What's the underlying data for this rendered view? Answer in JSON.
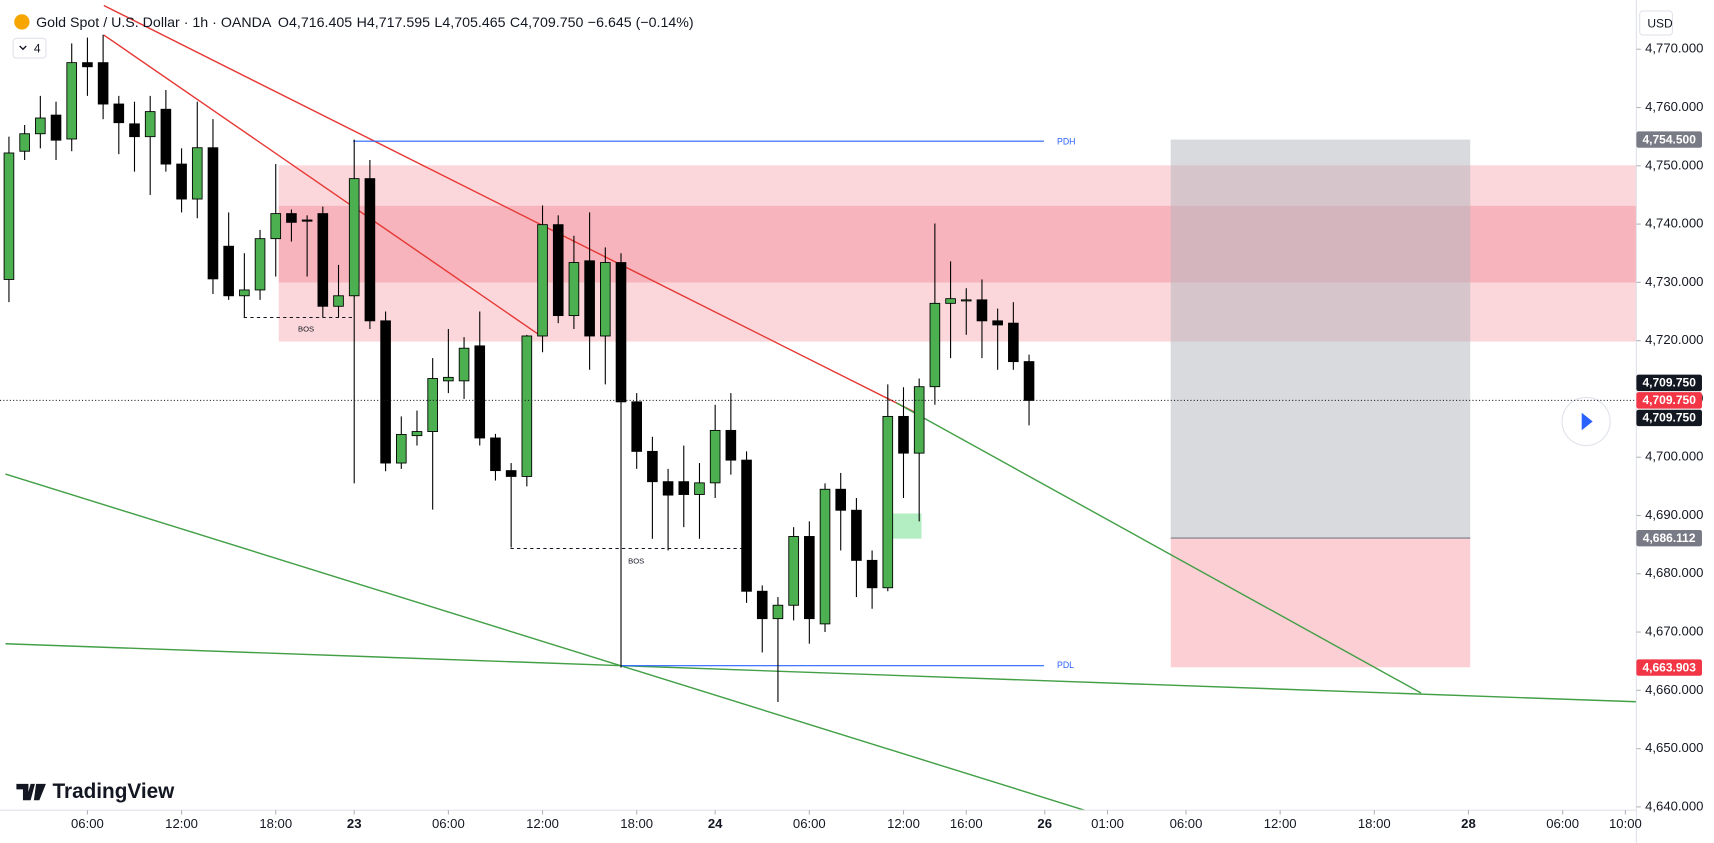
{
  "chart_data": {
    "type": "candlestick",
    "title": "Gold Spot / U.S. Dollar · 1h · OANDA",
    "ohlc_legend": [
      {
        "key": "O",
        "value": "4,716.405"
      },
      {
        "key": "H",
        "value": "4,717.595"
      },
      {
        "key": "L",
        "value": "4,705.465"
      },
      {
        "key": "C",
        "value": "4,709.750"
      }
    ],
    "change": "−6.645 (−0.14%)",
    "indicator_count": "4",
    "currency": "USD",
    "brand": "TradingView",
    "annotations": {
      "pdh": "PDH",
      "pdl": "PDL",
      "bos": [
        "BOS",
        "BOS"
      ]
    },
    "x": [
      0,
      1,
      2,
      3,
      4,
      5,
      6,
      7,
      8,
      9,
      10,
      11,
      12,
      13,
      14,
      15,
      16,
      17,
      18,
      19,
      20,
      21,
      22,
      23,
      24,
      25,
      26,
      27,
      28,
      29,
      30,
      31,
      32,
      33,
      34,
      35,
      36,
      37,
      38,
      39,
      40,
      41,
      42,
      43,
      44,
      45,
      46,
      47,
      48,
      49,
      50,
      51,
      52,
      53,
      54,
      55,
      56,
      57,
      58,
      59,
      60,
      61,
      62,
      63,
      64,
      65
    ],
    "open": [
      4730.5,
      4752.5,
      4755.5,
      4758.7,
      4754.6,
      4767.7,
      4767.7,
      4760.6,
      4757.2,
      4755,
      4759.7,
      4750.3,
      4744.3,
      4753.1,
      4736.2,
      4727.7,
      4728.7,
      4737.5,
      4741.8,
      4740.7,
      4741.8,
      4725.9,
      4727.7,
      4747.8,
      4723.4,
      4699,
      4703.7,
      4704.4,
      4713.1,
      4713.1,
      4719.1,
      4703.3,
      4697.7,
      4696.7,
      4720.8,
      4739.9,
      4724.3,
      4733.7,
      4720.8,
      4733.4,
      4709.5,
      4701,
      4695.8,
      4695.8,
      4693.6,
      4695.6,
      4704.6,
      4699.5,
      4677,
      4672.3,
      4674.6,
      4686.4,
      4671.4,
      4694.5,
      4690.9,
      4682.3,
      4677.6,
      4707,
      4700.7,
      4712.1,
      4726.4,
      4727,
      4727,
      4723.4,
      4723,
      4716.405
    ],
    "high": [
      4755,
      4757,
      4762,
      4761,
      4771,
      4772,
      4772.5,
      4762,
      4761,
      4762,
      4763,
      4753,
      4761,
      4758,
      4742,
      4735,
      4739,
      4750.3,
      4742.5,
      4741.5,
      4743,
      4733,
      4754.5,
      4751,
      4725,
      4707,
      4708,
      4717,
      4722,
      4720.6,
      4725,
      4704,
      4699,
      4721,
      4743.2,
      4741.5,
      4738,
      4742,
      4736,
      4735,
      4711,
      4703.5,
      4698,
      4702,
      4699,
      4709,
      4711,
      4701,
      4678,
      4676,
      4688,
      4689,
      4695.5,
      4697.3,
      4693,
      4684,
      4712.5,
      4712,
      4713.5,
      4740.1,
      4733.6,
      4729,
      4730.5,
      4725.5,
      4726.6,
      4717.595
    ],
    "low": [
      4726.6,
      4751,
      4753,
      4751,
      4752.5,
      4762,
      4758,
      4752,
      4749,
      4745,
      4749,
      4742,
      4741,
      4728,
      4727,
      4724,
      4727,
      4731,
      4737,
      4731,
      4724,
      4724,
      4695.5,
      4722,
      4697.6,
      4698,
      4702,
      4691,
      4711,
      4710,
      4702,
      4696,
      4684.5,
      4695,
      4718,
      4723,
      4722,
      4715,
      4712.5,
      4663.9,
      4698,
      4686,
      4684,
      4688,
      4686,
      4693,
      4697,
      4675,
      4666.5,
      4658,
      4672,
      4668,
      4670,
      4684,
      4676,
      4674,
      4677,
      4693,
      4689,
      4709,
      4717,
      4721,
      4717,
      4715,
      4715,
      4705.465
    ],
    "close": [
      4752.2,
      4755.5,
      4758.2,
      4754.4,
      4767.7,
      4767,
      4760.6,
      4757.4,
      4755,
      4759.3,
      4750.3,
      4744.3,
      4753.1,
      4730.6,
      4727.7,
      4728.7,
      4737.5,
      4741.8,
      4740.3,
      4740.5,
      4725.9,
      4727.7,
      4747.8,
      4723.4,
      4699,
      4703.9,
      4704.4,
      4713.5,
      4713.7,
      4718.7,
      4703.3,
      4697.7,
      4696.7,
      4720.8,
      4739.9,
      4724.3,
      4733.4,
      4720.8,
      4733.4,
      4709.5,
      4701,
      4695.8,
      4693.5,
      4693.6,
      4695.6,
      4704.6,
      4699.5,
      4677,
      4672.3,
      4674.6,
      4686.4,
      4672.3,
      4694.5,
      4690.9,
      4682.3,
      4677.6,
      4707,
      4700.7,
      4712.1,
      4726.4,
      4727.2,
      4727,
      4723.4,
      4722.7,
      4716.4,
      4709.75
    ],
    "up_color": "#4caf50",
    "down_color": "#000000",
    "xlim": [
      -0.57,
      103.7
    ],
    "xticks": [
      {
        "value": 5,
        "label": "06:00"
      },
      {
        "value": 11,
        "label": "12:00"
      },
      {
        "value": 17,
        "label": "18:00"
      },
      {
        "value": 22,
        "label": "23"
      },
      {
        "value": 28,
        "label": "06:00"
      },
      {
        "value": 34,
        "label": "12:00"
      },
      {
        "value": 40,
        "label": "18:00"
      },
      {
        "value": 45,
        "label": "24"
      },
      {
        "value": 51,
        "label": "06:00"
      },
      {
        "value": 57,
        "label": "12:00"
      },
      {
        "value": 61,
        "label": "16:00"
      },
      {
        "value": 66,
        "label": "26"
      },
      {
        "value": 70,
        "label": "01:00"
      },
      {
        "value": 75,
        "label": "06:00"
      },
      {
        "value": 81,
        "label": "12:00"
      },
      {
        "value": 87,
        "label": "18:00"
      },
      {
        "value": 93,
        "label": "28"
      },
      {
        "value": 99,
        "label": "06:00"
      },
      {
        "value": 103,
        "label": "10:00"
      }
    ],
    "ylim": [
      4639.44,
      4778.45
    ],
    "yticks": [
      {
        "value": 4640,
        "label": "4,640.000"
      },
      {
        "value": 4650,
        "label": "4,650.000"
      },
      {
        "value": 4660,
        "label": "4,660.000"
      },
      {
        "value": 4670,
        "label": "4,670.000"
      },
      {
        "value": 4680,
        "label": "4,680.000"
      },
      {
        "value": 4690,
        "label": "4,690.000"
      },
      {
        "value": 4700,
        "label": "4,700.000"
      },
      {
        "value": 4710,
        "label": "4,710.000"
      },
      {
        "value": 4720,
        "label": "4,720.000"
      },
      {
        "value": 4730,
        "label": "4,730.000"
      },
      {
        "value": 4740,
        "label": "4,740.000"
      },
      {
        "value": 4750,
        "label": "4,750.000"
      },
      {
        "value": 4760,
        "label": "4,760.000"
      },
      {
        "value": 4770,
        "label": "4,770.000"
      }
    ],
    "price_labels": [
      {
        "value": 4754.5,
        "label": "4,754.500",
        "color": "#787b86"
      },
      {
        "value": 4709.75,
        "label": "4,709.750",
        "color": "#131722"
      },
      {
        "value": 4709.75,
        "label": "4,709.750",
        "color": "#f23645"
      },
      {
        "value": 4709.75,
        "label": "4,709.750",
        "color": "#131722"
      },
      {
        "value": 4686.112,
        "label": "4,686.112",
        "color": "#787b86"
      },
      {
        "value": 4663.903,
        "label": "4,663.903",
        "color": "#f23645"
      }
    ],
    "grid": false
  }
}
